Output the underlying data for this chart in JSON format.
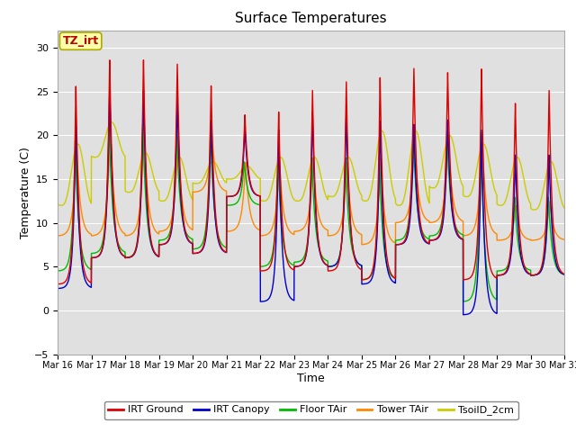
{
  "title": "Surface Temperatures",
  "xlabel": "Time",
  "ylabel": "Temperature (C)",
  "ylim": [
    -5,
    32
  ],
  "background_color": "#e0e0e0",
  "series": {
    "IRT Ground": {
      "color": "#dd0000",
      "lw": 1.0
    },
    "IRT Canopy": {
      "color": "#0000cc",
      "lw": 1.0
    },
    "Floor TAir": {
      "color": "#00bb00",
      "lw": 1.0
    },
    "Tower TAir": {
      "color": "#ff8800",
      "lw": 1.0
    },
    "TsoilD_2cm": {
      "color": "#cccc00",
      "lw": 1.0
    }
  },
  "annotation": {
    "text": "TZ_irt",
    "facecolor": "#ffffaa",
    "edgecolor": "#aaaa00",
    "textcolor": "#bb0000",
    "fontsize": 9,
    "fontweight": "bold"
  },
  "x_tick_labels": [
    "Mar 16",
    "Mar 17",
    "Mar 18",
    "Mar 19",
    "Mar 20",
    "Mar 21",
    "Mar 22",
    "Mar 23",
    "Mar 24",
    "Mar 25",
    "Mar 26",
    "Mar 27",
    "Mar 28",
    "Mar 29",
    "Mar 30",
    "Mar 31"
  ],
  "yticks": [
    -5,
    0,
    5,
    10,
    15,
    20,
    25,
    30
  ],
  "grid_color": "#ffffff",
  "daily_cycles": {
    "night_min_ground": [
      3.0,
      6.0,
      6.0,
      7.5,
      6.5,
      13.0,
      4.5,
      5.0,
      4.5,
      3.5,
      7.5,
      8.0,
      3.5,
      4.0,
      4.0
    ],
    "day_max_ground": [
      26.0,
      29.0,
      29.0,
      28.5,
      26.0,
      22.5,
      23.0,
      25.5,
      26.5,
      27.0,
      28.0,
      27.5,
      28.0,
      24.0,
      25.5
    ],
    "night_min_canopy": [
      2.5,
      6.0,
      6.0,
      7.5,
      6.5,
      13.0,
      1.0,
      5.0,
      5.0,
      3.0,
      7.5,
      8.0,
      -0.5,
      4.0,
      4.0
    ],
    "day_max_canopy": [
      22.0,
      26.0,
      25.5,
      24.5,
      22.0,
      21.0,
      21.0,
      23.0,
      23.0,
      22.0,
      21.5,
      22.0,
      21.0,
      18.0,
      18.0
    ],
    "night_min_floor": [
      4.5,
      6.5,
      6.0,
      8.0,
      7.0,
      12.0,
      5.0,
      5.5,
      5.0,
      3.5,
      8.0,
      8.5,
      1.0,
      4.5,
      4.0
    ],
    "day_max_floor": [
      19.5,
      21.5,
      21.5,
      20.5,
      21.0,
      17.0,
      17.5,
      17.5,
      17.5,
      17.0,
      20.5,
      20.5,
      20.5,
      13.0,
      13.0
    ],
    "night_min_tower": [
      8.5,
      8.5,
      8.5,
      9.0,
      13.5,
      9.0,
      8.5,
      9.0,
      8.5,
      7.5,
      10.0,
      10.0,
      8.5,
      8.0,
      8.0
    ],
    "day_max_tower": [
      19.0,
      21.0,
      21.0,
      20.0,
      20.5,
      17.0,
      17.5,
      17.5,
      17.0,
      17.5,
      20.0,
      20.0,
      20.0,
      12.0,
      12.5
    ],
    "night_min_soil": [
      12.0,
      17.5,
      13.5,
      12.5,
      14.5,
      15.0,
      12.5,
      12.5,
      13.0,
      12.5,
      12.0,
      14.0,
      13.0,
      12.0,
      11.5
    ],
    "day_max_soil": [
      19.0,
      21.5,
      18.0,
      17.5,
      17.0,
      16.5,
      17.5,
      17.5,
      17.5,
      20.5,
      20.5,
      20.0,
      19.0,
      17.5,
      17.0
    ]
  },
  "figsize": [
    6.4,
    4.8
  ],
  "dpi": 100
}
